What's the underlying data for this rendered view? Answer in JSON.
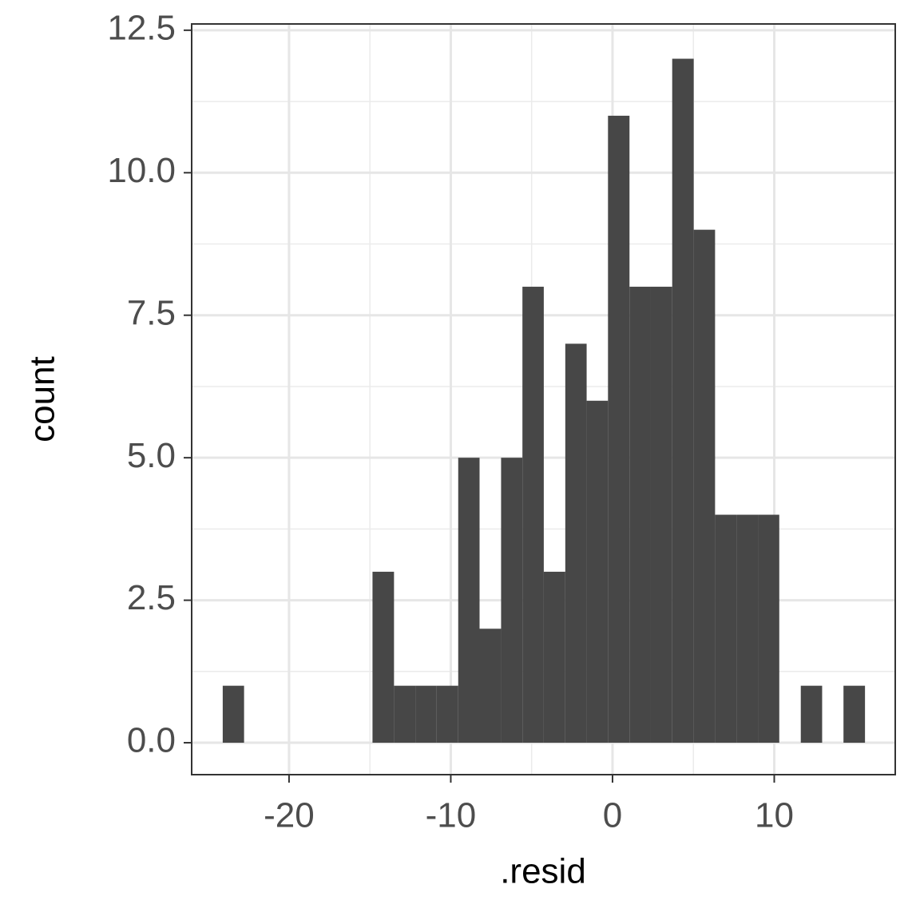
{
  "chart_data": {
    "type": "histogram",
    "x_label": ".resid",
    "y_label": "count",
    "bins": [
      -24.1,
      -22.78,
      -21.45,
      -20.13,
      -18.81,
      -17.48,
      -16.16,
      -14.84,
      -13.51,
      -12.19,
      -10.87,
      -9.54,
      -8.22,
      -6.89,
      -5.57,
      -4.25,
      -2.92,
      -1.6,
      -0.28,
      1.05,
      2.37,
      3.69,
      5.02,
      6.34,
      7.66,
      8.99,
      10.31,
      11.64,
      12.96,
      14.28,
      15.61
    ],
    "values": [
      1,
      0,
      0,
      0,
      0,
      0,
      0,
      3,
      1,
      1,
      1,
      5,
      2,
      5,
      8,
      3,
      7,
      6,
      11,
      8,
      8,
      12,
      9,
      4,
      4,
      4,
      0,
      1,
      0,
      1
    ],
    "color": "#474747",
    "xlim": [
      -26.02,
      17.48
    ],
    "xticks": [
      -20,
      -10,
      0,
      10
    ],
    "ylim": [
      -0.56,
      12.61
    ],
    "yticks": [
      {
        "value": 0,
        "label": "0.0"
      },
      2.5,
      {
        "value": 5,
        "label": "5.0"
      },
      7.5,
      {
        "value": 10,
        "label": "10.0"
      },
      12.5
    ],
    "grid": true
  }
}
